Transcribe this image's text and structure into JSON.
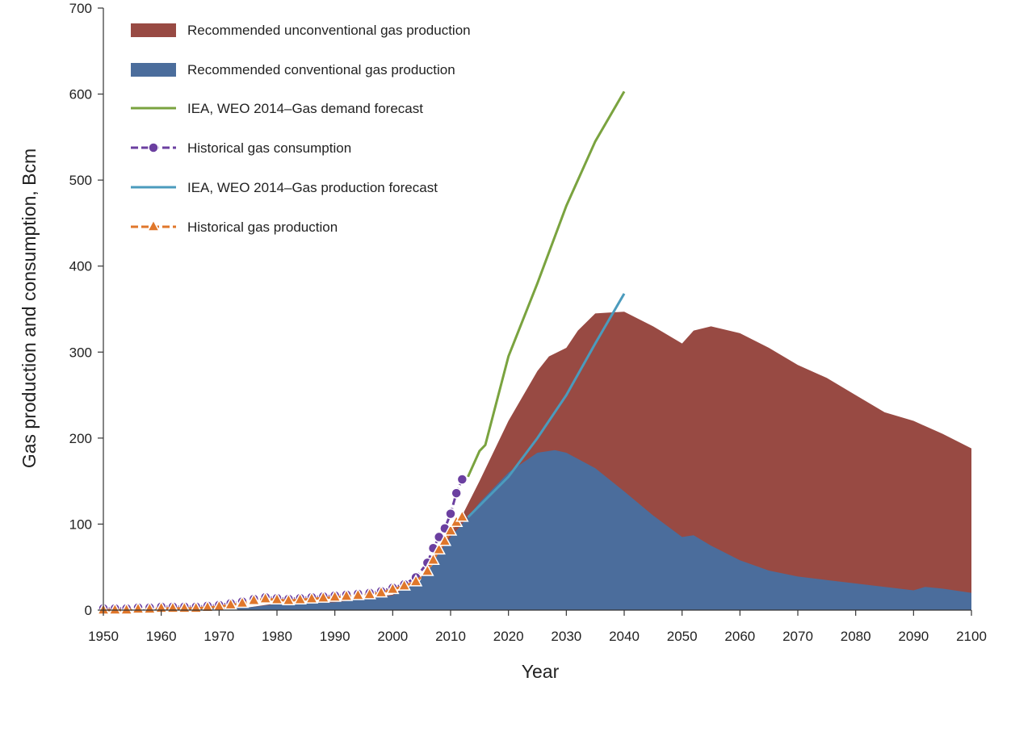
{
  "chart_data": {
    "type": "area",
    "xlabel": "Year",
    "ylabel": "Gas production and consumption, Bcm",
    "xlim": [
      1950,
      2100
    ],
    "ylim": [
      0,
      700
    ],
    "x_ticks": [
      1950,
      1960,
      1970,
      1980,
      1990,
      2000,
      2010,
      2020,
      2030,
      2040,
      2050,
      2060,
      2070,
      2080,
      2090,
      2100
    ],
    "y_ticks": [
      0,
      100,
      200,
      300,
      400,
      500,
      600,
      700
    ],
    "legend_position": "top-left",
    "colors": {
      "unconventional": "#984a43",
      "conventional": "#4b6d9c",
      "demand": "#7aa33f",
      "consumption": "#6b3fa0",
      "prod_forecast": "#4b9bbd",
      "hist_production": "#e0772b"
    },
    "series": [
      {
        "name": "Recommended unconventional gas production",
        "kind": "stacked-area",
        "note": "values are cumulative stack top (conventional + unconventional)",
        "x": [
          1950,
          1975,
          1980,
          1990,
          2000,
          2005,
          2010,
          2012,
          2015,
          2020,
          2025,
          2027,
          2030,
          2032,
          2035,
          2040,
          2045,
          2050,
          2052,
          2055,
          2060,
          2065,
          2070,
          2075,
          2080,
          2085,
          2090,
          2095,
          2100
        ],
        "values": [
          0,
          3,
          8,
          10,
          18,
          40,
          90,
          110,
          150,
          220,
          278,
          295,
          305,
          325,
          345,
          347,
          330,
          310,
          325,
          330,
          322,
          305,
          285,
          270,
          250,
          230,
          220,
          205,
          188
        ]
      },
      {
        "name": "Recommended conventional gas production",
        "kind": "area",
        "x": [
          1950,
          1975,
          1980,
          1990,
          2000,
          2005,
          2010,
          2012,
          2015,
          2020,
          2025,
          2028,
          2030,
          2035,
          2040,
          2045,
          2050,
          2052,
          2055,
          2060,
          2065,
          2070,
          2075,
          2080,
          2085,
          2090,
          2092,
          2095,
          2100
        ],
        "values": [
          0,
          3,
          7,
          9,
          17,
          38,
          85,
          100,
          125,
          160,
          183,
          186,
          183,
          165,
          138,
          110,
          85,
          87,
          75,
          58,
          46,
          39,
          35,
          31,
          27,
          23,
          27,
          25,
          20
        ]
      },
      {
        "name": "IEA, WEO 2014–Gas demand forecast",
        "kind": "line",
        "x": [
          2013,
          2015,
          2016,
          2020,
          2025,
          2030,
          2035,
          2040
        ],
        "values": [
          155,
          185,
          192,
          295,
          380,
          470,
          545,
          603
        ]
      },
      {
        "name": "Historical gas consumption",
        "kind": "line-markers",
        "marker": "circle",
        "x": [
          1950,
          1952,
          1954,
          1956,
          1958,
          1960,
          1962,
          1964,
          1966,
          1968,
          1970,
          1972,
          1974,
          1976,
          1978,
          1980,
          1982,
          1984,
          1986,
          1988,
          1990,
          1992,
          1994,
          1996,
          1998,
          2000,
          2002,
          2004,
          2006,
          2007,
          2008,
          2009,
          2010,
          2011,
          2012
        ],
        "values": [
          2,
          2,
          2,
          3,
          3,
          4,
          4,
          4,
          4,
          5,
          6,
          8,
          10,
          13,
          15,
          14,
          13,
          14,
          15,
          16,
          17,
          18,
          19,
          20,
          22,
          26,
          30,
          38,
          55,
          72,
          85,
          95,
          112,
          136,
          152
        ]
      },
      {
        "name": "IEA, WEO 2014–Gas production forecast",
        "kind": "line",
        "x": [
          2013,
          2020,
          2025,
          2030,
          2035,
          2040
        ],
        "values": [
          108,
          155,
          200,
          250,
          310,
          368
        ]
      },
      {
        "name": "Historical gas production",
        "kind": "line-markers",
        "marker": "triangle",
        "x": [
          1950,
          1952,
          1954,
          1956,
          1958,
          1960,
          1962,
          1964,
          1966,
          1968,
          1970,
          1972,
          1974,
          1976,
          1978,
          1980,
          1982,
          1984,
          1986,
          1988,
          1990,
          1992,
          1994,
          1996,
          1998,
          2000,
          2002,
          2004,
          2006,
          2007,
          2008,
          2009,
          2010,
          2011,
          2012
        ],
        "values": [
          0,
          0,
          0,
          1,
          1,
          2,
          2,
          2,
          2,
          3,
          4,
          6,
          8,
          11,
          13,
          12,
          11,
          12,
          13,
          14,
          15,
          16,
          17,
          18,
          20,
          24,
          28,
          33,
          45,
          58,
          70,
          80,
          92,
          102,
          108
        ]
      }
    ]
  }
}
